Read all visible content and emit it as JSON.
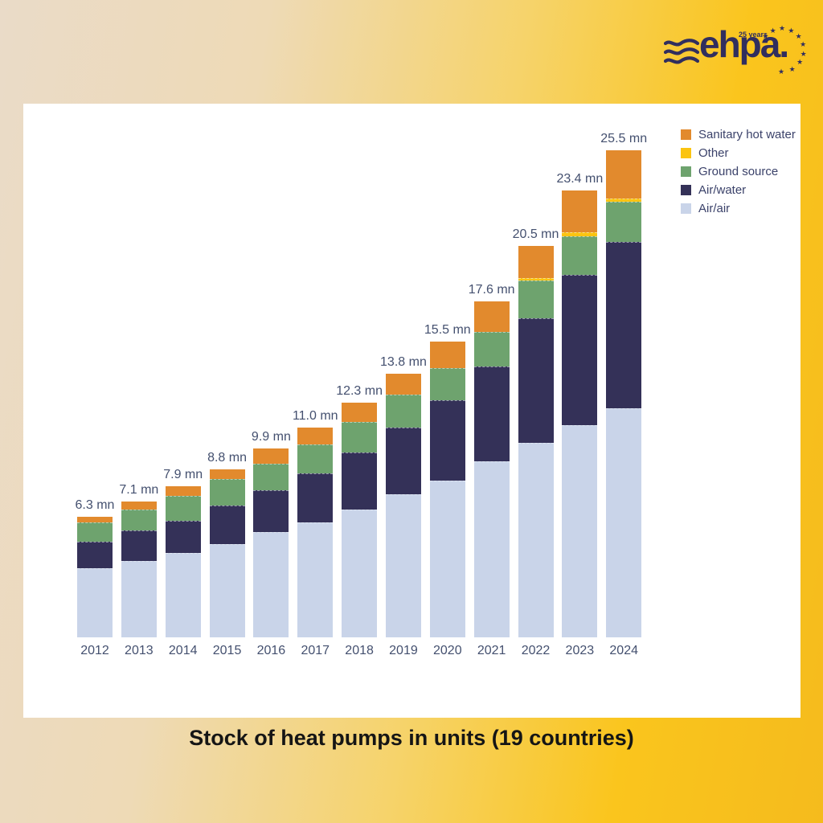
{
  "logo": {
    "brand": "ehpa.",
    "tagline": "25 years"
  },
  "title": "Stock of heat pumps in units (19 countries)",
  "legend": {
    "items": [
      {
        "label": "Sanitary hot water",
        "color": "#E28A2D"
      },
      {
        "label": "Other",
        "color": "#FBC411"
      },
      {
        "label": "Ground source",
        "color": "#6EA36E"
      },
      {
        "label": "Air/water",
        "color": "#343158"
      },
      {
        "label": "Air/air",
        "color": "#C9D4E9"
      }
    ]
  },
  "chart_data": {
    "type": "bar",
    "stacked": true,
    "title": "Stock of heat pumps in units (19 countries)",
    "xlabel": "",
    "ylabel": "",
    "value_unit": "mn",
    "ylim": [
      0,
      27
    ],
    "grid": false,
    "legend_position": "top-right",
    "categories": [
      "2012",
      "2013",
      "2014",
      "2015",
      "2016",
      "2017",
      "2018",
      "2019",
      "2020",
      "2021",
      "2022",
      "2023",
      "2024"
    ],
    "series": [
      {
        "name": "Air/air",
        "color": "#C9D4E9",
        "values": [
          3.6,
          4.0,
          4.4,
          4.9,
          5.5,
          6.0,
          6.7,
          7.5,
          8.2,
          9.2,
          10.2,
          11.1,
          12.0
        ]
      },
      {
        "name": "Air/water",
        "color": "#343158",
        "values": [
          1.4,
          1.6,
          1.7,
          2.0,
          2.2,
          2.6,
          3.0,
          3.5,
          4.2,
          5.0,
          6.5,
          7.9,
          8.7
        ]
      },
      {
        "name": "Ground source",
        "color": "#6EA36E",
        "values": [
          1.0,
          1.1,
          1.3,
          1.4,
          1.4,
          1.5,
          1.6,
          1.7,
          1.7,
          1.8,
          2.0,
          2.0,
          2.1
        ]
      },
      {
        "name": "Other",
        "color": "#FBC411",
        "values": [
          0,
          0,
          0,
          0,
          0,
          0,
          0,
          0,
          0,
          0,
          0.1,
          0.2,
          0.2
        ]
      },
      {
        "name": "Sanitary hot water",
        "color": "#E28A2D",
        "values": [
          0.3,
          0.4,
          0.5,
          0.5,
          0.8,
          0.9,
          1.0,
          1.1,
          1.4,
          1.6,
          1.7,
          2.2,
          2.5
        ]
      }
    ],
    "totals": [
      6.3,
      7.1,
      7.9,
      8.8,
      9.9,
      11.0,
      12.3,
      13.8,
      15.5,
      17.6,
      20.5,
      23.4,
      25.5
    ],
    "total_labels": [
      "6.3 mn",
      "7.1 mn",
      "7.9 mn",
      "8.8 mn",
      "9.9 mn",
      "11.0 mn",
      "12.3 mn",
      "13.8 mn",
      "15.5 mn",
      "17.6 mn",
      "20.5 mn",
      "23.4 mn",
      "25.5 mn"
    ]
  }
}
